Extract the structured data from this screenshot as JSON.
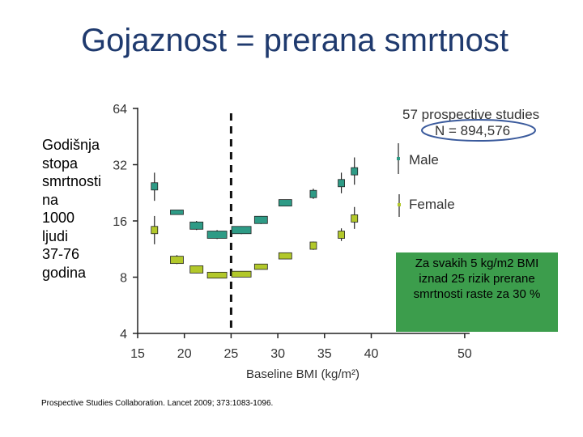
{
  "title": "Gojaznost = prerana smrtnost",
  "y_label_lines": [
    "Godišnja",
    "stopa",
    "smrtnosti",
    "na",
    "1000",
    "ljudi",
    "37-76",
    "godina"
  ],
  "note": "Za svakih 5 kg/m2 BMI iznad 25 rizik prerane smrtnosti raste za 30 %",
  "source": "Prospective Studies Collaboration. Lancet 2009; 373:1083-1096.",
  "colors": {
    "title": "#1f3a6e",
    "male": "#2e9b86",
    "female": "#b2c82a",
    "note_bg": "#3c9d4c",
    "ellipse": "#3a5a9c"
  },
  "chart_data": {
    "type": "scatter",
    "xlabel": "Baseline BMI (kg/m²)",
    "ylabel": "",
    "xlim": [
      15,
      50
    ],
    "ylim": [
      4,
      64
    ],
    "y_scale": "log2",
    "x_ticks": [
      15,
      20,
      25,
      30,
      35,
      40,
      50
    ],
    "y_ticks": [
      4,
      8,
      16,
      32,
      64
    ],
    "x_tick_labels": [
      "15",
      "20",
      "25",
      "30",
      "35",
      "40",
      "50"
    ],
    "y_tick_labels": [
      "4",
      "8",
      "16",
      "32",
      "64"
    ],
    "reference_line_x": 25,
    "legend": {
      "header_1": "57 prospective studies",
      "header_2": "N = 894,576",
      "entries": [
        "Male",
        "Female"
      ]
    },
    "series": [
      {
        "name": "Male",
        "points": [
          {
            "x": 16.8,
            "y": 24.5,
            "lo": 20.5,
            "hi": 29.0
          },
          {
            "x": 19.2,
            "y": 17.8,
            "lo": 17.3,
            "hi": 18.3
          },
          {
            "x": 21.3,
            "y": 15.1,
            "lo": 14.3,
            "hi": 16.0
          },
          {
            "x": 23.5,
            "y": 13.5,
            "lo": 12.8,
            "hi": 14.3
          },
          {
            "x": 26.1,
            "y": 14.3,
            "lo": 13.6,
            "hi": 15.0
          },
          {
            "x": 28.2,
            "y": 16.2,
            "lo": 15.4,
            "hi": 17.0
          },
          {
            "x": 30.8,
            "y": 20.0,
            "lo": 19.2,
            "hi": 20.8
          },
          {
            "x": 33.8,
            "y": 22.3,
            "lo": 21.0,
            "hi": 23.8
          },
          {
            "x": 36.8,
            "y": 25.5,
            "lo": 22.5,
            "hi": 29.0
          },
          {
            "x": 38.2,
            "y": 29.5,
            "lo": 25.0,
            "hi": 35.0
          }
        ]
      },
      {
        "name": "Female",
        "points": [
          {
            "x": 16.8,
            "y": 14.3,
            "lo": 12.0,
            "hi": 17.0
          },
          {
            "x": 19.2,
            "y": 9.9,
            "lo": 9.4,
            "hi": 10.5
          },
          {
            "x": 21.3,
            "y": 8.8,
            "lo": 8.4,
            "hi": 9.2
          },
          {
            "x": 23.5,
            "y": 8.2,
            "lo": 7.9,
            "hi": 8.5
          },
          {
            "x": 26.1,
            "y": 8.3,
            "lo": 8.0,
            "hi": 8.6
          },
          {
            "x": 28.2,
            "y": 9.1,
            "lo": 8.8,
            "hi": 9.4
          },
          {
            "x": 30.8,
            "y": 10.4,
            "lo": 10.0,
            "hi": 10.8
          },
          {
            "x": 33.8,
            "y": 11.8,
            "lo": 11.2,
            "hi": 12.4
          },
          {
            "x": 36.8,
            "y": 13.5,
            "lo": 12.5,
            "hi": 14.6
          },
          {
            "x": 38.2,
            "y": 16.5,
            "lo": 14.5,
            "hi": 19.0
          }
        ]
      }
    ]
  }
}
